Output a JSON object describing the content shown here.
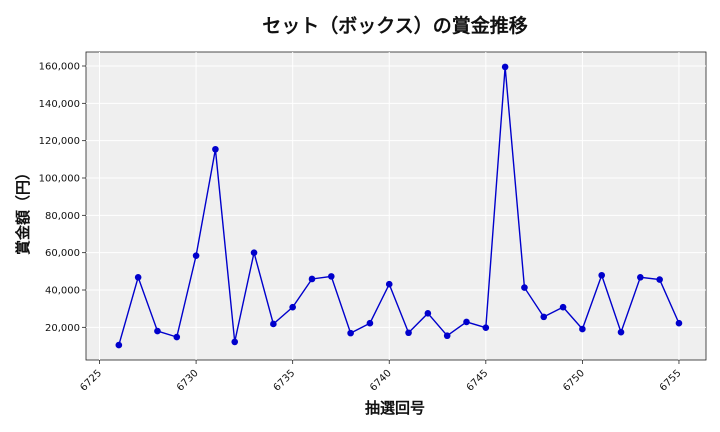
{
  "chart_data": {
    "type": "line",
    "title": "セット（ボックス）の賞金推移",
    "xlabel": "抽選回号",
    "ylabel": "賞金額（円）",
    "xlim": [
      6724.3,
      6756.4
    ],
    "ylim": [
      2500,
      167500
    ],
    "x_ticks": [
      6725,
      6730,
      6735,
      6740,
      6745,
      6750,
      6755
    ],
    "y_ticks": [
      20000,
      40000,
      60000,
      80000,
      100000,
      120000,
      140000,
      160000
    ],
    "x_tick_labels": [
      "6725",
      "6730",
      "6735",
      "6740",
      "6745",
      "6750",
      "6755"
    ],
    "y_tick_labels": [
      "20,000",
      "40,000",
      "60,000",
      "80,000",
      "100,000",
      "120,000",
      "140,000",
      "160,000"
    ],
    "grid": true,
    "colors": {
      "line": "#0000cc",
      "plot_bg": "#efefef",
      "grid": "#ffffff"
    },
    "x": [
      6726,
      6727,
      6728,
      6729,
      6730,
      6731,
      6732,
      6733,
      6734,
      6735,
      6736,
      6737,
      6738,
      6739,
      6740,
      6741,
      6742,
      6743,
      6744,
      6745,
      6746,
      6747,
      6748,
      6749,
      6750,
      6751,
      6752,
      6753,
      6754,
      6755
    ],
    "values": [
      10500,
      46800,
      18000,
      14800,
      58400,
      115400,
      12200,
      60000,
      21800,
      30800,
      45900,
      47300,
      16900,
      22200,
      43100,
      17100,
      27500,
      15500,
      22900,
      19800,
      159500,
      41300,
      25600,
      30800,
      19100,
      47900,
      17400,
      46800,
      45600,
      22200
    ]
  }
}
